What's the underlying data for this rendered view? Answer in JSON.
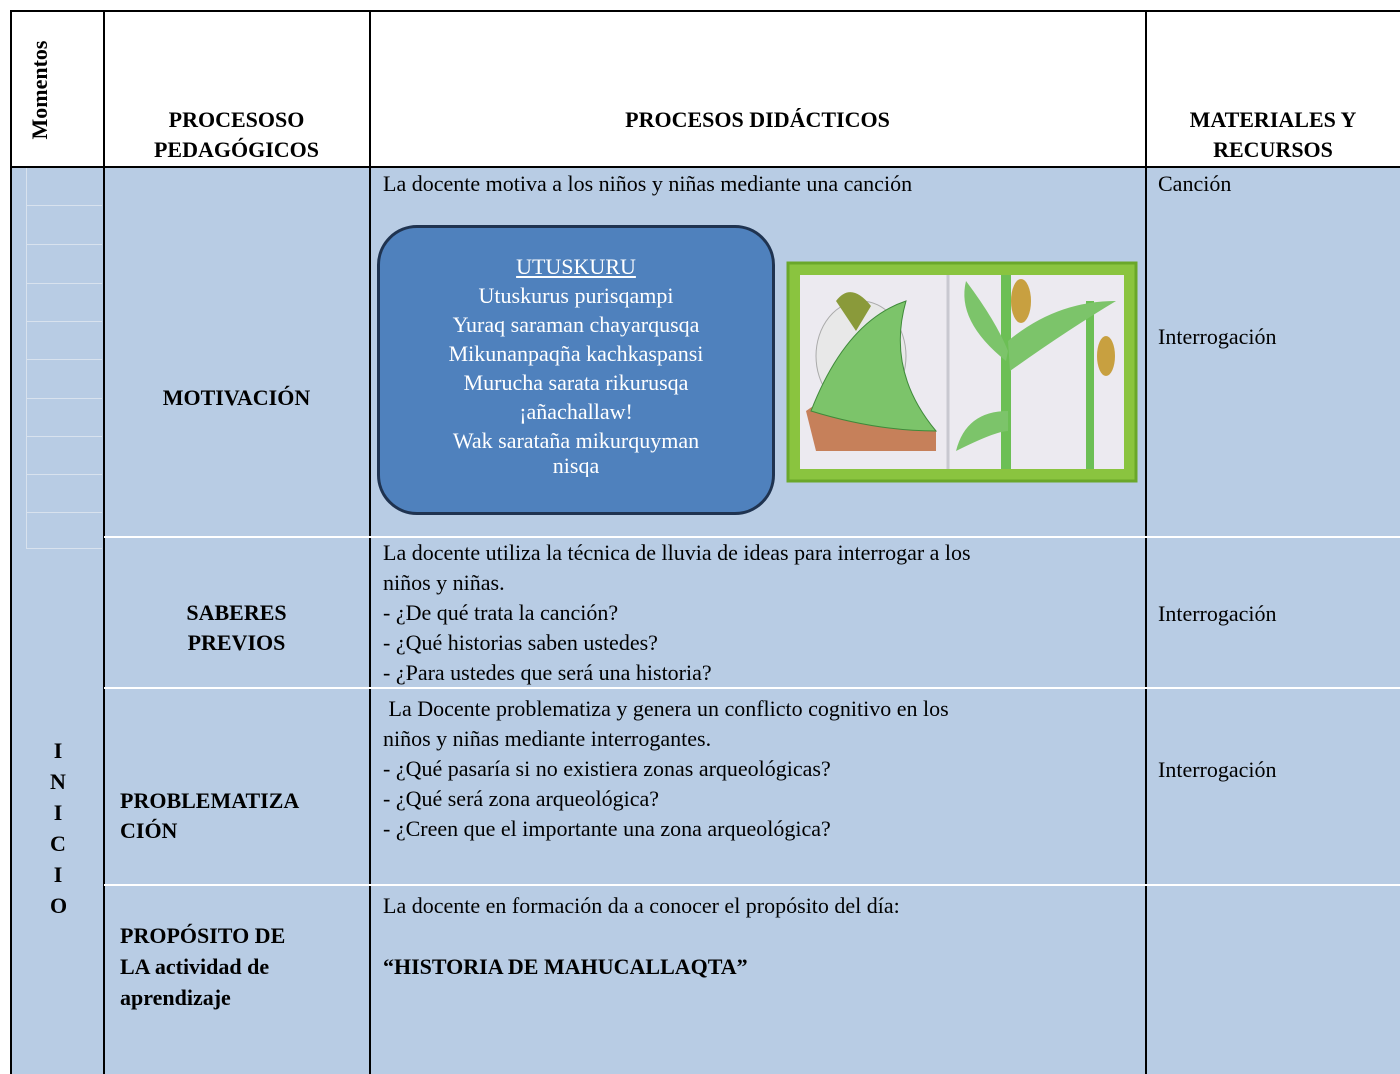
{
  "table": {
    "header": {
      "moments": "Momentos",
      "process": [
        "PROCESOSO",
        "PEDAGÓGICOS"
      ],
      "didactic": "PROCESOS DIDÁCTICOS",
      "materials": [
        "MATERIALES Y",
        "RECURSOS"
      ]
    },
    "moment": "INICIO",
    "rows": [
      {
        "process": [
          "MOTIVACIÓN"
        ],
        "didactic": [
          "La docente motiva a los niños y niñas mediante una canción"
        ],
        "materials": [
          "Canción",
          "Interrogación"
        ]
      },
      {
        "process": [
          "SABERES",
          "PREVIOS"
        ],
        "didactic": [
          "La docente utiliza la técnica de lluvia de ideas para interrogar a los",
          "niños y niñas.",
          "- ¿De qué trata la canción?",
          "- ¿Qué historias saben ustedes?",
          "- ¿Para ustedes que será una historia?"
        ],
        "materials": [
          "Interrogación"
        ]
      },
      {
        "process": [
          "PROBLEMATIZA",
          "CIÓN"
        ],
        "didactic": [
          " La Docente problematiza y genera un conflicto cognitivo en los",
          "niños y niñas mediante interrogantes.",
          "- ¿Qué pasaría si no existiera zonas arqueológicas?",
          "- ¿Qué será zona arqueológica?",
          "- ¿Creen que el importante una zona arqueológica?"
        ],
        "materials": [
          "Interrogación"
        ]
      },
      {
        "process": [
          "PROPÓSITO DE",
          "LA actividad de",
          "aprendizaje"
        ],
        "didactic": [
          "La docente en formación da a conocer el propósito del día:",
          "“HISTORIA DE MAHUCALLAQTA”"
        ],
        "materials": []
      }
    ],
    "song": {
      "title": "UTUSKURU",
      "lines": [
        "Utuskurus purisqampi",
        "Yuraq saraman chayarqusqa",
        "Mikunanpaqña kachkaspansi",
        "Murucha sarata rikurusqa",
        "¡añachallaw!",
        "Wak sarataña mikurquyman",
        "nisqa"
      ]
    }
  }
}
